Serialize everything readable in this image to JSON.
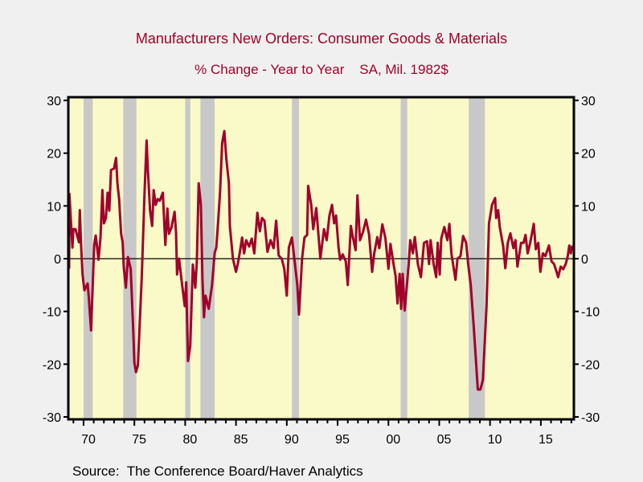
{
  "chart_data": {
    "type": "line",
    "title": "Manufacturers New Orders: Consumer Goods & Materials",
    "subtitle": "% Change - Year to Year    SA, Mil. 1982$",
    "source": "Source:  The Conference Board/Haver Analytics",
    "xlabel": "",
    "ylabel": "",
    "xlim": [
      1968.5,
      2018.25
    ],
    "ylim": [
      -30,
      30
    ],
    "y_ticks": [
      30,
      20,
      10,
      0,
      -10,
      -20,
      -30
    ],
    "x_ticks": [
      {
        "year": 1970,
        "label": "70"
      },
      {
        "year": 1975,
        "label": "75"
      },
      {
        "year": 1980,
        "label": "80"
      },
      {
        "year": 1985,
        "label": "85"
      },
      {
        "year": 1990,
        "label": "90"
      },
      {
        "year": 1995,
        "label": "95"
      },
      {
        "year": 2000,
        "label": "00"
      },
      {
        "year": 2005,
        "label": "05"
      },
      {
        "year": 2010,
        "label": "10"
      },
      {
        "year": 2015,
        "label": "15"
      }
    ],
    "grid": false,
    "zero_line": true,
    "axes": "left and right",
    "colors": {
      "line": "#a0002a",
      "plot_background": "#fafac8",
      "recession_shading": "#c8c8c8",
      "title": "#a0002a",
      "page_background": "#f0f0f0"
    },
    "recessions": [
      [
        1970.0,
        1970.9
      ],
      [
        1973.9,
        1975.2
      ],
      [
        1980.0,
        1980.5
      ],
      [
        1981.5,
        1982.9
      ],
      [
        1990.5,
        1991.2
      ],
      [
        2001.2,
        2001.85
      ],
      [
        2007.9,
        2009.5
      ]
    ],
    "series": [
      {
        "x": [
          1968.58,
          1968.6,
          1968.9,
          1969.0,
          1969.2,
          1969.55,
          1969.63,
          1969.74,
          1969.9,
          1970.08,
          1970.4,
          1970.5,
          1970.74,
          1971.05,
          1971.2,
          1971.47,
          1971.66,
          1971.85,
          1972.0,
          1972.2,
          1972.37,
          1972.53,
          1972.7,
          1973.0,
          1973.2,
          1973.33,
          1973.5,
          1973.7,
          1973.85,
          1973.95,
          1974.16,
          1974.37,
          1974.64,
          1974.9,
          1975.0,
          1975.16,
          1975.35,
          1975.74,
          1976.0,
          1976.2,
          1976.33,
          1976.54,
          1976.75,
          1976.9,
          1977.1,
          1977.3,
          1977.5,
          1977.8,
          1978.05,
          1978.25,
          1978.4,
          1978.65,
          1978.96,
          1979.1,
          1979.2,
          1979.4,
          1979.7,
          1979.96,
          1980.1,
          1980.28,
          1980.5,
          1980.75,
          1981.0,
          1981.15,
          1981.33,
          1981.54,
          1981.7,
          1981.85,
          1982.0,
          1982.32,
          1982.64,
          1982.9,
          1983.06,
          1983.25,
          1983.43,
          1983.64,
          1983.85,
          1984.05,
          1984.3,
          1984.4,
          1984.7,
          1985.0,
          1985.2,
          1985.4,
          1985.6,
          1985.8,
          1986.0,
          1986.3,
          1986.55,
          1986.8,
          1987.1,
          1987.35,
          1987.55,
          1987.8,
          1988.1,
          1988.4,
          1988.7,
          1988.95,
          1989.2,
          1989.5,
          1989.75,
          1990.0,
          1990.2,
          1990.5,
          1990.8,
          1991.03,
          1991.2,
          1991.5,
          1991.74,
          1992.0,
          1992.1,
          1992.4,
          1992.6,
          1992.9,
          1993.3,
          1993.66,
          1993.93,
          1994.2,
          1994.45,
          1994.66,
          1994.85,
          1995.1,
          1995.25,
          1995.5,
          1995.8,
          1996.0,
          1996.3,
          1996.5,
          1996.77,
          1996.95,
          1997.2,
          1997.5,
          1997.8,
          1998.1,
          1998.4,
          1998.6,
          1998.9,
          1999.1,
          1999.4,
          1999.7,
          2000.0,
          2000.2,
          2000.5,
          2000.7,
          2000.9,
          2001.1,
          2001.25,
          2001.4,
          2001.6,
          2001.8,
          2002.0,
          2002.15,
          2002.4,
          2002.6,
          2002.9,
          2003.2,
          2003.5,
          2003.8,
          2004.0,
          2004.15,
          2004.45,
          2004.7,
          2004.85,
          2005.05,
          2005.2,
          2005.5,
          2005.8,
          2006.0,
          2006.2,
          2006.6,
          2006.8,
          2007.1,
          2007.35,
          2007.65,
          2007.85,
          2008.1,
          2008.4,
          2008.8,
          2009.05,
          2009.3,
          2009.65,
          2009.9,
          2010.2,
          2010.5,
          2010.6,
          2010.8,
          2010.95,
          2011.3,
          2011.5,
          2011.75,
          2012.0,
          2012.3,
          2012.5,
          2012.7,
          2013.05,
          2013.3,
          2013.5,
          2013.7,
          2013.95,
          2014.3,
          2014.5,
          2014.75,
          2014.95,
          2015.2,
          2015.45,
          2015.8,
          2016.05,
          2016.3,
          2016.55,
          2016.7,
          2016.95,
          2017.2,
          2017.45,
          2017.65,
          2017.8,
          2017.95,
          2018.1
        ],
        "y": [
          -1.9,
          12.3,
          2.1,
          5.6,
          5.6,
          3.1,
          9.2,
          3.1,
          -3.0,
          -6.0,
          -4.7,
          -7.0,
          -13.6,
          2.6,
          4.4,
          -0.2,
          3.9,
          13.0,
          6.7,
          7.7,
          12.5,
          9.1,
          16.8,
          17.1,
          19.1,
          14.3,
          11.3,
          4.7,
          3.1,
          -1.4,
          -5.5,
          0.3,
          -1.9,
          -14.1,
          -19.7,
          -21.5,
          -20.2,
          -3.0,
          12.3,
          22.4,
          16.8,
          9.1,
          6.2,
          13.0,
          10.2,
          11.3,
          11.0,
          12.5,
          2.6,
          9.5,
          4.7,
          5.9,
          8.9,
          5.0,
          -3.0,
          0.0,
          -5.0,
          -9.0,
          -4.5,
          -19.4,
          -16.6,
          -1.1,
          -5.5,
          -0.6,
          14.3,
          10.2,
          -4.0,
          -11.1,
          -7.0,
          -9.5,
          -5.0,
          1.1,
          2.1,
          7.2,
          12.7,
          21.9,
          24.2,
          18.9,
          14.3,
          6.2,
          0.0,
          -2.5,
          -0.8,
          1.5,
          4.0,
          1.0,
          3.5,
          2.3,
          3.8,
          1.0,
          8.7,
          5.2,
          7.7,
          7.2,
          1.3,
          3.5,
          2.0,
          7.2,
          0.6,
          0.0,
          -1.9,
          -7.0,
          2.1,
          4.0,
          -0.9,
          -5.0,
          -10.6,
          0.0,
          4.0,
          4.5,
          13.8,
          10.2,
          5.6,
          9.6,
          0.0,
          5.6,
          3.5,
          8.2,
          10.2,
          6.7,
          8.2,
          2.0,
          -0.2,
          0.8,
          -0.5,
          -5.0,
          6.2,
          4.1,
          1.6,
          12.0,
          3.5,
          5.1,
          7.4,
          4.6,
          -2.5,
          1.0,
          4.1,
          2.0,
          6.5,
          3.9,
          -1.9,
          2.8,
          -1.0,
          -3.2,
          -8.5,
          -2.9,
          -9.5,
          -2.9,
          -9.8,
          -5.5,
          -1.0,
          3.5,
          1.0,
          4.1,
          -1.0,
          -3.5,
          3.0,
          3.3,
          -1.0,
          3.5,
          -1.0,
          -3.5,
          3.0,
          -3.0,
          3.8,
          6.0,
          3.5,
          6.6,
          1.0,
          -4.0,
          0.0,
          0.5,
          4.3,
          3.0,
          -1.0,
          -5.0,
          -13.1,
          -24.8,
          -24.8,
          -23.0,
          -9.1,
          6.7,
          10.2,
          11.5,
          7.7,
          9.2,
          6.1,
          2.3,
          -1.8,
          3.0,
          4.8,
          2.0,
          3.5,
          -1.5,
          3.0,
          3.0,
          4.5,
          1.0,
          3.0,
          6.6,
          1.8,
          3.0,
          -2.5,
          1.0,
          0.5,
          2.5,
          -0.5,
          -1.0,
          -2.5,
          -3.5,
          -1.5,
          -2.0,
          -1.0,
          0.5,
          2.5,
          1.0,
          2.5
        ]
      }
    ]
  }
}
